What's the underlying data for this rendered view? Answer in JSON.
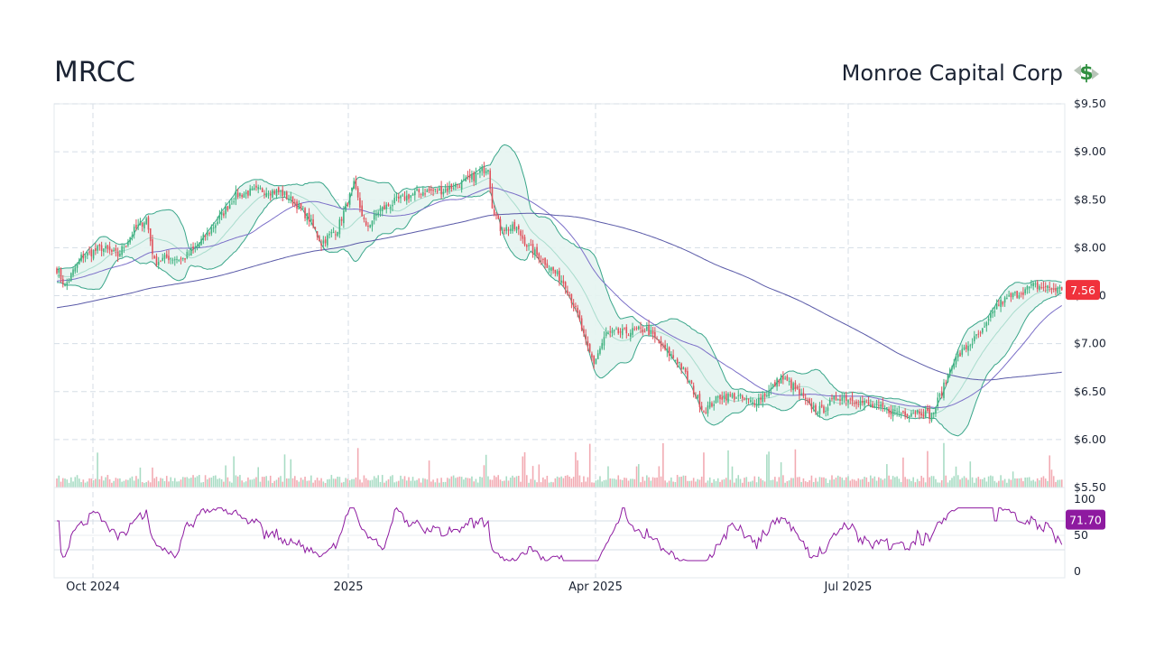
{
  "header": {
    "ticker": "MRCC",
    "company": "Monroe Capital Corp",
    "logo_icon": "dollar-arrows-icon"
  },
  "colors": {
    "up": "#3fb27f",
    "down": "#e0505a",
    "band_fill": "#e6f4f1",
    "band_line": "#3aa68a",
    "ma50": "#7b6fc8",
    "ma200": "#5a5aa8",
    "rsi": "#8e1aa0",
    "grid": "#d5dde6",
    "last_price_badge": "#f0323c",
    "rsi_badge": "#8e1aa0"
  },
  "chart_data": [
    {
      "type": "candlestick",
      "title": "",
      "x_ticks": [
        "Oct 2024",
        "2025",
        "Apr 2025",
        "Jul 2025"
      ],
      "y_ticks": [
        "$9.50",
        "$9.00",
        "$8.50",
        "$8.00",
        "$7.50",
        "$7.00",
        "$6.50",
        "$6.00",
        "$5.50"
      ],
      "ylim": [
        5.5,
        9.5
      ],
      "last_price": "7.56",
      "close_series": {
        "name": "",
        "anchors": [
          [
            0,
            7.78
          ],
          [
            4,
            7.6
          ],
          [
            12,
            7.9
          ],
          [
            22,
            8.0
          ],
          [
            30,
            7.92
          ],
          [
            38,
            8.18
          ],
          [
            44,
            8.3
          ],
          [
            48,
            7.85
          ],
          [
            55,
            7.9
          ],
          [
            62,
            7.88
          ],
          [
            68,
            8.0
          ],
          [
            78,
            8.25
          ],
          [
            88,
            8.55
          ],
          [
            100,
            8.6
          ],
          [
            110,
            8.58
          ],
          [
            118,
            8.45
          ],
          [
            124,
            8.3
          ],
          [
            130,
            8.05
          ],
          [
            138,
            8.2
          ],
          [
            146,
            8.65
          ],
          [
            152,
            8.2
          ],
          [
            158,
            8.38
          ],
          [
            168,
            8.5
          ],
          [
            178,
            8.58
          ],
          [
            190,
            8.6
          ],
          [
            204,
            8.72
          ],
          [
            212,
            8.85
          ],
          [
            214,
            8.45
          ],
          [
            218,
            8.2
          ],
          [
            226,
            8.2
          ],
          [
            232,
            8.0
          ],
          [
            240,
            7.85
          ],
          [
            250,
            7.62
          ],
          [
            256,
            7.3
          ],
          [
            260,
            7.0
          ],
          [
            264,
            6.8
          ],
          [
            270,
            7.1
          ],
          [
            280,
            7.12
          ],
          [
            290,
            7.15
          ],
          [
            298,
            6.95
          ],
          [
            306,
            6.8
          ],
          [
            312,
            6.55
          ],
          [
            318,
            6.3
          ],
          [
            326,
            6.45
          ],
          [
            334,
            6.45
          ],
          [
            342,
            6.38
          ],
          [
            350,
            6.5
          ],
          [
            356,
            6.65
          ],
          [
            362,
            6.55
          ],
          [
            370,
            6.35
          ],
          [
            376,
            6.3
          ],
          [
            384,
            6.45
          ],
          [
            392,
            6.42
          ],
          [
            400,
            6.35
          ],
          [
            410,
            6.3
          ],
          [
            418,
            6.28
          ],
          [
            424,
            6.3
          ],
          [
            430,
            6.25
          ],
          [
            436,
            6.55
          ],
          [
            440,
            6.8
          ],
          [
            448,
            6.98
          ],
          [
            456,
            7.15
          ],
          [
            462,
            7.4
          ],
          [
            470,
            7.5
          ],
          [
            480,
            7.6
          ],
          [
            488,
            7.58
          ],
          [
            494,
            7.56
          ]
        ]
      },
      "bollinger_bands": {
        "period": 20,
        "std": 2
      },
      "moving_averages": [
        {
          "name": "",
          "period": 50
        },
        {
          "name": "",
          "period": 200
        }
      ],
      "volume": {
        "shown": true,
        "relative": true
      }
    },
    {
      "type": "line",
      "title": "",
      "series_name": "",
      "y_ticks": [
        "100",
        "50",
        "0"
      ],
      "ylim": [
        0,
        100
      ],
      "reference_lines": [
        70,
        30
      ],
      "last_value": "71.70"
    }
  ]
}
